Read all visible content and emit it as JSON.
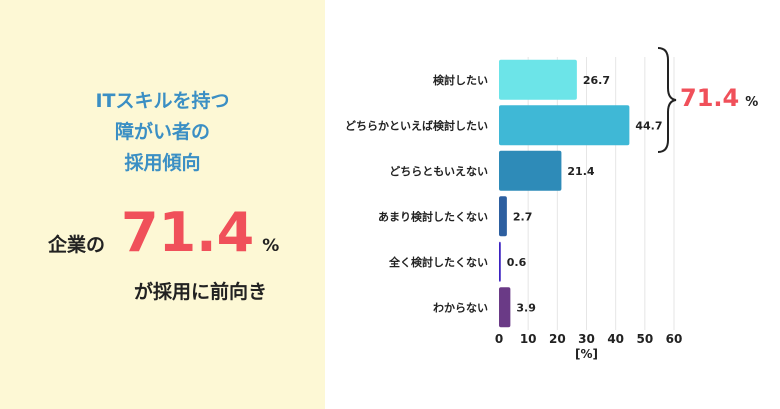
{
  "left_panel": {
    "title_lines": [
      "ITスキルを持つ",
      "障がい者の",
      "採用傾向"
    ],
    "prefix": "企業の",
    "highlight_value": "71.4",
    "percent_sign": "%",
    "suffix": "が採用に前向き",
    "background_color": "#fdf8d5",
    "title_color": "#3b8fc4",
    "highlight_color": "#f0505a"
  },
  "chart_data": {
    "type": "bar",
    "orientation": "horizontal",
    "categories": [
      "検討したい",
      "どちらかといえば検討したい",
      "どちらともいえない",
      "あまり検討したくない",
      "全く検討したくない",
      "わからない"
    ],
    "values": [
      26.7,
      44.7,
      21.4,
      2.7,
      0.6,
      3.9
    ],
    "value_labels": [
      "26.7",
      "44.7",
      "21.4",
      "2.7",
      "0.6",
      "3.9"
    ],
    "colors": [
      "#6ce4e8",
      "#3fb8d6",
      "#2e8bb8",
      "#2d5fa0",
      "#3b22c0",
      "#6a3a86"
    ],
    "xlabel": "[%]",
    "xlim": [
      0,
      60
    ],
    "xticks": [
      "0",
      "10",
      "20",
      "30",
      "40",
      "50",
      "60"
    ],
    "grid": true,
    "annotation": {
      "value": "71.4",
      "unit": "%",
      "brackets": [
        "検討したい",
        "どちらかといえば検討したい"
      ]
    }
  }
}
